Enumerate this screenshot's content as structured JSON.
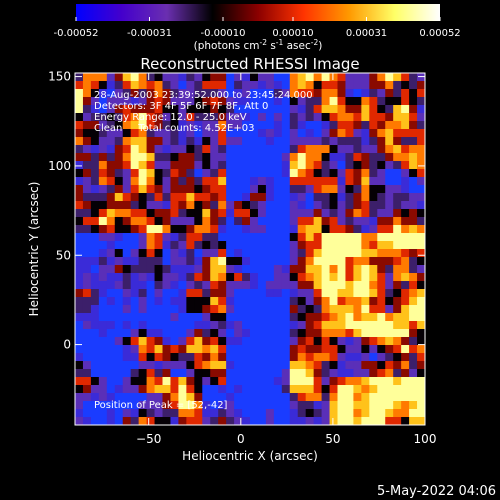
{
  "chart_data": {
    "type": "heatmap",
    "title": "Reconstructed RHESSI Image",
    "colorbar": {
      "ticks": [
        "-0.00052",
        "-0.00031",
        "-0.00010",
        "0.00010",
        "0.00031",
        "0.00052"
      ],
      "tick_values": [
        -0.00052,
        -0.00031,
        -0.0001,
        0.0001,
        0.00031,
        0.00052
      ],
      "range": [
        -0.00052,
        0.00052
      ],
      "label_main": "(photons cm",
      "label_sup1": "-2",
      "label_mid": " s",
      "label_sup2": "-1",
      "label_end": " asec",
      "label_sup3": "-2",
      "label_close": ")",
      "colors": [
        "#0000ff",
        "#4400cc",
        "#6a2fb0",
        "#000000",
        "#8b0000",
        "#ff3300",
        "#ff9900",
        "#ffff66",
        "#ffffff"
      ]
    },
    "info_lines": [
      "28-Aug-2003 23:39:52.000 to 23:45:24.000",
      "Detectors: 3F 4F 5F 6F 7F 8F, Att 0",
      "Energy Range: 12.0 - 25.0 keV",
      "Clean     Total counts: 4.52E+03"
    ],
    "peak_label": "Position of Peak = [52,-42]",
    "peak_position": [
      52,
      -42
    ],
    "xlabel": "Heliocentric X (arcsec)",
    "ylabel": "Heliocentric Y (arcsec)",
    "xlim": [
      -90,
      100
    ],
    "ylim": [
      -45,
      152
    ],
    "x_ticks": [
      -50,
      0,
      50,
      100
    ],
    "y_ticks": [
      0,
      50,
      100,
      150
    ],
    "x_tick_labels": [
      "−50",
      "0",
      "50",
      "100"
    ],
    "y_tick_labels": [
      "0",
      "50",
      "100",
      "150"
    ],
    "grid": false
  },
  "footer": {
    "timestamp": "5-May-2022 04:06"
  }
}
